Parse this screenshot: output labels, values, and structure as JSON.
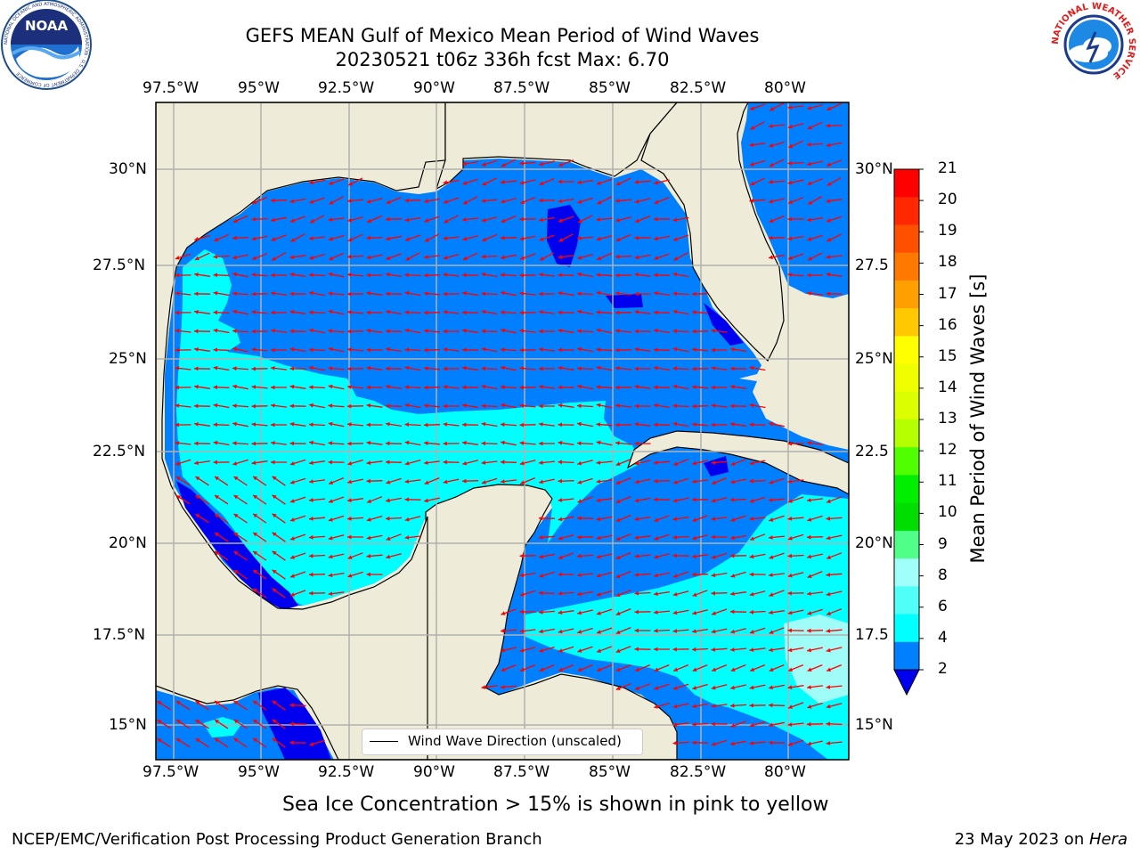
{
  "header": {
    "title_line1": "GEFS MEAN Gulf of Mexico Mean Period of Wind Waves",
    "title_line2": "20230521 t06z 336h fcst   Max: 6.70"
  },
  "logos": {
    "left": "NOAA",
    "left_ring_text": "NATIONAL OCEANIC AND ATMOSPHERIC ADMINISTRATION · U.S. DEPARTMENT OF COMMERCE",
    "right_ring_text": "NATIONAL WEATHER SERVICE"
  },
  "map": {
    "lon_labels": [
      "97.5°W",
      "95°W",
      "92.5°W",
      "90°W",
      "87.5°W",
      "85°W",
      "82.5°W",
      "80°W"
    ],
    "lat_labels_left": [
      "30°N",
      "27.5°N",
      "25°N",
      "22.5°N",
      "20°N",
      "17.5°N",
      "15°N"
    ],
    "lat_labels_right": [
      "30°N",
      "27.5",
      "25°N",
      "22.5",
      "20°N",
      "17.5",
      "15°N"
    ],
    "legend_label": "Wind Wave Direction (unscaled)",
    "colors": {
      "land": "#eeecd9",
      "ocean_dark": "#0000ee",
      "ocean_mid": "#0080ff",
      "ocean_light": "#00ffff",
      "ocean_pale": "#9ffcf7",
      "arrow": "#ff0000",
      "grid": "#b0b0b0"
    }
  },
  "colorbar": {
    "label": "Mean Period of Wind Waves [s]",
    "ticks": [
      "21",
      "20",
      "19",
      "18",
      "17",
      "16",
      "15",
      "14",
      "13",
      "12",
      "11",
      "10",
      "9",
      "8",
      "6",
      "4",
      "2"
    ],
    "colors": [
      "#ff0000",
      "#ff2800",
      "#ff5000",
      "#ff7800",
      "#ffa000",
      "#ffc800",
      "#ffff00",
      "#f0ff00",
      "#dcff00",
      "#b4ff00",
      "#50ff00",
      "#00ee00",
      "#00dd00",
      "#50ff88",
      "#a0fff8",
      "#50fff8",
      "#00ffff",
      "#0080ff"
    ],
    "extend_color": "#0000ee"
  },
  "footer": {
    "note": "Sea Ice Concentration > 15% is shown in pink to yellow",
    "credit": "NCEP/EMC/Verification Post Processing Product Generation Branch",
    "date": "23 May 2023 on ",
    "machine": "Hera"
  }
}
